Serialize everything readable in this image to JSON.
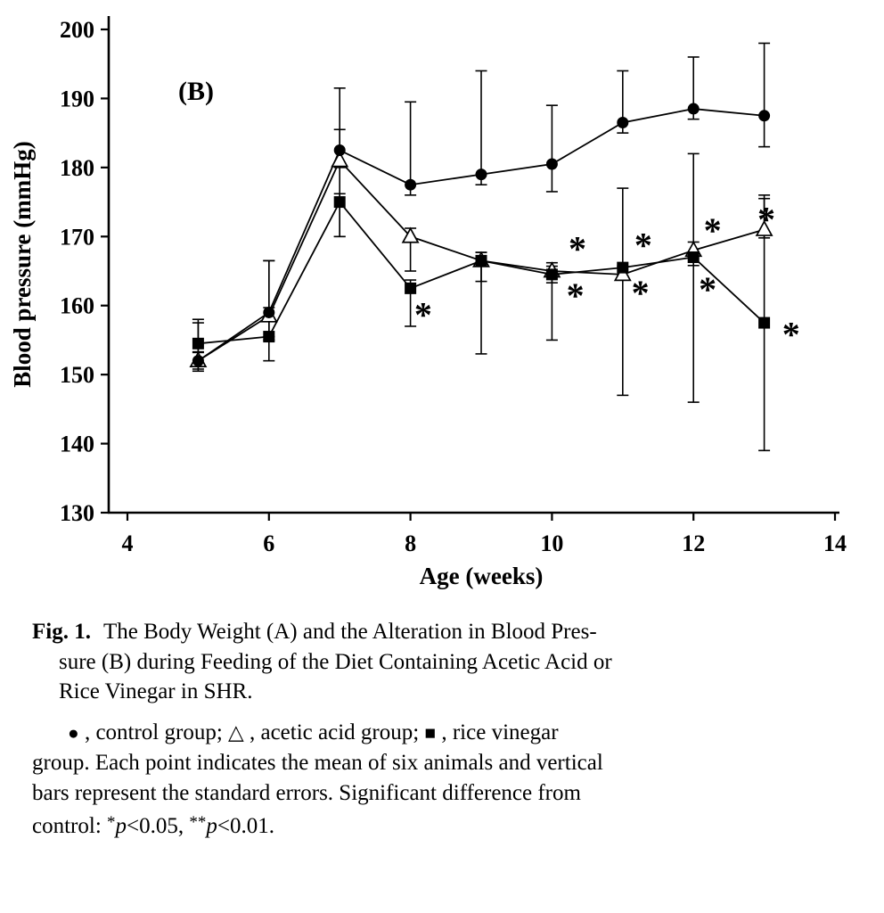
{
  "chart_data": {
    "type": "line",
    "panel_label": "(B)",
    "xlabel": "Age (weeks)",
    "ylabel": "Blood pressure (mmHg)",
    "xlim": [
      4,
      14
    ],
    "ylim": [
      130,
      200
    ],
    "x_ticks": [
      4,
      6,
      8,
      10,
      12,
      14
    ],
    "y_ticks": [
      130,
      140,
      150,
      160,
      170,
      180,
      190,
      200
    ],
    "grid": false,
    "legend_position": "caption-below",
    "x": [
      5,
      6,
      7,
      8,
      9,
      10,
      11,
      12,
      13
    ],
    "series": [
      {
        "name": "control group",
        "marker": "filled-circle",
        "values": [
          152,
          159,
          182.5,
          177.5,
          179,
          180.5,
          186.5,
          188.5,
          187.5
        ],
        "err_up": [
          5.5,
          7.5,
          9,
          12,
          15,
          8.5,
          7.5,
          7.5,
          10.5
        ],
        "err_down": [
          1.5,
          4,
          2.5,
          1.5,
          1.5,
          4,
          1.5,
          1.5,
          4.5
        ]
      },
      {
        "name": "acetic acid group",
        "marker": "open-triangle",
        "values": [
          152,
          158.5,
          181,
          170,
          166.5,
          165,
          164.5,
          168,
          171
        ],
        "err_up": [
          1.2,
          1.2,
          4.5,
          1.2,
          1.2,
          1.2,
          1.2,
          1.2,
          4.5
        ],
        "err_down": [
          1.2,
          3,
          11,
          5,
          13.5,
          10,
          17.5,
          22,
          1.2
        ]
      },
      {
        "name": "rice vinegar group",
        "marker": "filled-square",
        "values": [
          154.5,
          155.5,
          175,
          162.5,
          166.5,
          164.5,
          165.5,
          167,
          157.5
        ],
        "err_up": [
          3.5,
          11,
          1.2,
          1.2,
          1.2,
          1.2,
          11.5,
          15,
          18.5
        ],
        "err_down": [
          1.2,
          3.5,
          5,
          5.5,
          3,
          1.2,
          1.2,
          1.2,
          18.5
        ]
      }
    ],
    "annotations": [
      {
        "x": 8.18,
        "y": 159.5,
        "text": "*"
      },
      {
        "x": 10.36,
        "y": 169.1,
        "text": "*"
      },
      {
        "x": 10.33,
        "y": 162.3,
        "text": "*"
      },
      {
        "x": 11.29,
        "y": 169.6,
        "text": "*"
      },
      {
        "x": 11.25,
        "y": 162.7,
        "text": "*"
      },
      {
        "x": 12.27,
        "y": 171.7,
        "text": "*"
      },
      {
        "x": 12.2,
        "y": 163.2,
        "text": "*"
      },
      {
        "x": 13.03,
        "y": 173.3,
        "text": "*"
      },
      {
        "x": 13.38,
        "y": 156.7,
        "text": "*"
      }
    ]
  },
  "caption": {
    "fig_label": "Fig. 1.",
    "title_lines": [
      "The Body Weight (A) and the Alteration in Blood Pres-",
      "sure (B) during Feeding of the Diet Containing Acetic Acid or",
      "Rice Vinegar in SHR."
    ],
    "legend": {
      "sym_control": "●",
      "t1": " , control group; ",
      "sym_acetic": "△",
      "t2": " , acetic acid group; ",
      "sym_vinegar": "■",
      "t3": " , rice vinegar",
      "line2": "group. Each point indicates the mean of six animals and vertical",
      "line3": "bars represent the standard errors. Significant difference from",
      "line4_prefix": "control: ",
      "star1": "*",
      "p1": "p",
      "cmp1": "<0.05, ",
      "star2": "**",
      "p2": "p",
      "cmp2": "<0.01."
    }
  }
}
